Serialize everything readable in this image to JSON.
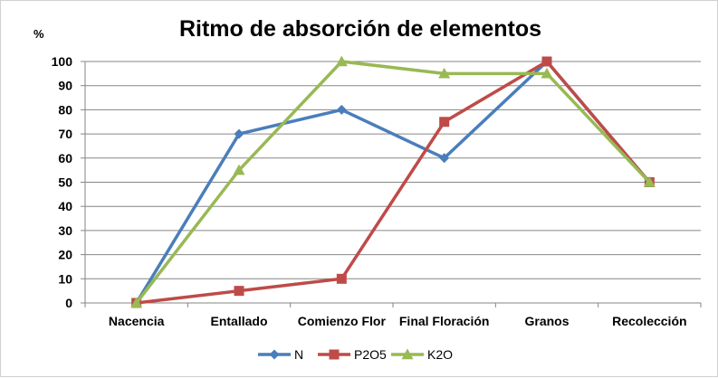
{
  "chart_data": {
    "type": "line",
    "title": "Ritmo de absorción de elementos",
    "unit_label": "%",
    "categories": [
      "Nacencia",
      "Entallado",
      "Comienzo Flor",
      "Final Floración",
      "Granos",
      "Recolección"
    ],
    "ylim": [
      0,
      100
    ],
    "y_ticks": [
      0,
      10,
      20,
      30,
      40,
      50,
      60,
      70,
      80,
      90,
      100
    ],
    "grid": true,
    "legend_position": "bottom",
    "series": [
      {
        "name": "N",
        "values": [
          0,
          70,
          80,
          60,
          100,
          50
        ],
        "color": "#4a7ebb",
        "marker": "diamond"
      },
      {
        "name": "P2O5",
        "values": [
          0,
          5,
          10,
          75,
          100,
          50
        ],
        "color": "#be4b48",
        "marker": "square"
      },
      {
        "name": "K2O",
        "values": [
          0,
          55,
          100,
          95,
          95,
          50
        ],
        "color": "#98b954",
        "marker": "triangle"
      }
    ]
  }
}
